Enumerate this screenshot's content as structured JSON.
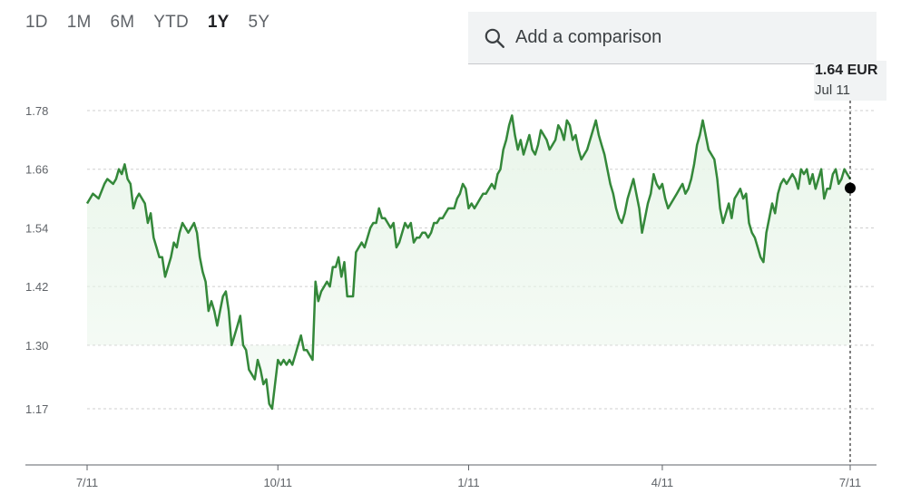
{
  "ranges": [
    "1D",
    "1M",
    "6M",
    "YTD",
    "1Y",
    "5Y"
  ],
  "active_range": "1Y",
  "search": {
    "placeholder": "Add a comparison",
    "icon": "search-icon"
  },
  "tooltip": {
    "value": "1.64 EUR",
    "date": "Jul 11"
  },
  "colors": {
    "line": "#34883a",
    "fill": "#e8f5e9",
    "grid": "#cfcfcf",
    "marker": "#000000"
  },
  "chart_data": {
    "type": "line",
    "title": "",
    "xlabel": "",
    "ylabel": "",
    "ylim": [
      1.09,
      1.81
    ],
    "y_ticks": [
      "1.78",
      "1.66",
      "1.54",
      "1.42",
      "1.30",
      "1.17"
    ],
    "x_ticks": [
      {
        "label": "7/11",
        "x": 0
      },
      {
        "label": "10/11",
        "x": 66
      },
      {
        "label": "1/11",
        "x": 132
      },
      {
        "label": "4/11",
        "x": 199
      },
      {
        "label": "7/11",
        "x": 264
      }
    ],
    "grid": true,
    "series": [
      {
        "values": [
          [
            0,
            1.59
          ],
          [
            1,
            1.6
          ],
          [
            2,
            1.61
          ],
          [
            4,
            1.6
          ],
          [
            6,
            1.63
          ],
          [
            7,
            1.64
          ],
          [
            9,
            1.63
          ],
          [
            10,
            1.64
          ],
          [
            11,
            1.66
          ],
          [
            12,
            1.65
          ],
          [
            13,
            1.67
          ],
          [
            14,
            1.64
          ],
          [
            15,
            1.63
          ],
          [
            16,
            1.58
          ],
          [
            17,
            1.6
          ],
          [
            18,
            1.61
          ],
          [
            19,
            1.6
          ],
          [
            20,
            1.59
          ],
          [
            21,
            1.55
          ],
          [
            22,
            1.57
          ],
          [
            23,
            1.52
          ],
          [
            24,
            1.5
          ],
          [
            25,
            1.48
          ],
          [
            26,
            1.48
          ],
          [
            27,
            1.44
          ],
          [
            28,
            1.46
          ],
          [
            29,
            1.48
          ],
          [
            30,
            1.51
          ],
          [
            31,
            1.5
          ],
          [
            32,
            1.53
          ],
          [
            33,
            1.55
          ],
          [
            34,
            1.54
          ],
          [
            35,
            1.53
          ],
          [
            36,
            1.54
          ],
          [
            37,
            1.55
          ],
          [
            38,
            1.53
          ],
          [
            39,
            1.48
          ],
          [
            40,
            1.45
          ],
          [
            41,
            1.43
          ],
          [
            42,
            1.37
          ],
          [
            43,
            1.39
          ],
          [
            44,
            1.37
          ],
          [
            45,
            1.34
          ],
          [
            46,
            1.37
          ],
          [
            47,
            1.4
          ],
          [
            48,
            1.41
          ],
          [
            49,
            1.37
          ],
          [
            50,
            1.3
          ],
          [
            51,
            1.32
          ],
          [
            52,
            1.34
          ],
          [
            53,
            1.36
          ],
          [
            54,
            1.3
          ],
          [
            55,
            1.29
          ],
          [
            56,
            1.25
          ],
          [
            57,
            1.24
          ],
          [
            58,
            1.23
          ],
          [
            59,
            1.27
          ],
          [
            60,
            1.25
          ],
          [
            61,
            1.22
          ],
          [
            62,
            1.23
          ],
          [
            63,
            1.18
          ],
          [
            64,
            1.17
          ],
          [
            65,
            1.22
          ],
          [
            66,
            1.27
          ],
          [
            67,
            1.26
          ],
          [
            68,
            1.27
          ],
          [
            69,
            1.26
          ],
          [
            70,
            1.27
          ],
          [
            71,
            1.26
          ],
          [
            72,
            1.28
          ],
          [
            73,
            1.3
          ],
          [
            74,
            1.32
          ],
          [
            75,
            1.29
          ],
          [
            76,
            1.29
          ],
          [
            77,
            1.28
          ],
          [
            78,
            1.27
          ],
          [
            79,
            1.43
          ],
          [
            80,
            1.39
          ],
          [
            81,
            1.41
          ],
          [
            82,
            1.42
          ],
          [
            83,
            1.43
          ],
          [
            84,
            1.42
          ],
          [
            85,
            1.46
          ],
          [
            86,
            1.46
          ],
          [
            87,
            1.48
          ],
          [
            88,
            1.44
          ],
          [
            89,
            1.47
          ],
          [
            90,
            1.4
          ],
          [
            91,
            1.4
          ],
          [
            92,
            1.4
          ],
          [
            93,
            1.49
          ],
          [
            94,
            1.5
          ],
          [
            95,
            1.51
          ],
          [
            96,
            1.5
          ],
          [
            97,
            1.52
          ],
          [
            98,
            1.54
          ],
          [
            99,
            1.55
          ],
          [
            100,
            1.55
          ],
          [
            101,
            1.58
          ],
          [
            102,
            1.56
          ],
          [
            103,
            1.56
          ],
          [
            104,
            1.55
          ],
          [
            105,
            1.54
          ],
          [
            106,
            1.55
          ],
          [
            107,
            1.5
          ],
          [
            108,
            1.51
          ],
          [
            109,
            1.53
          ],
          [
            110,
            1.55
          ],
          [
            111,
            1.54
          ],
          [
            112,
            1.55
          ],
          [
            113,
            1.51
          ],
          [
            114,
            1.52
          ],
          [
            115,
            1.52
          ],
          [
            116,
            1.53
          ],
          [
            117,
            1.53
          ],
          [
            118,
            1.52
          ],
          [
            119,
            1.53
          ],
          [
            120,
            1.55
          ],
          [
            121,
            1.55
          ],
          [
            122,
            1.56
          ],
          [
            123,
            1.56
          ],
          [
            124,
            1.57
          ],
          [
            125,
            1.58
          ],
          [
            126,
            1.58
          ],
          [
            127,
            1.58
          ],
          [
            128,
            1.6
          ],
          [
            129,
            1.61
          ],
          [
            130,
            1.63
          ],
          [
            131,
            1.62
          ],
          [
            132,
            1.58
          ],
          [
            133,
            1.59
          ],
          [
            134,
            1.58
          ],
          [
            135,
            1.59
          ],
          [
            136,
            1.6
          ],
          [
            137,
            1.61
          ],
          [
            138,
            1.61
          ],
          [
            139,
            1.62
          ],
          [
            140,
            1.63
          ],
          [
            141,
            1.62
          ],
          [
            142,
            1.65
          ],
          [
            143,
            1.66
          ],
          [
            144,
            1.7
          ],
          [
            145,
            1.72
          ],
          [
            146,
            1.75
          ],
          [
            147,
            1.77
          ],
          [
            148,
            1.73
          ],
          [
            149,
            1.7
          ],
          [
            150,
            1.72
          ],
          [
            151,
            1.69
          ],
          [
            152,
            1.71
          ],
          [
            153,
            1.73
          ],
          [
            154,
            1.7
          ],
          [
            155,
            1.69
          ],
          [
            156,
            1.71
          ],
          [
            157,
            1.74
          ],
          [
            158,
            1.73
          ],
          [
            159,
            1.72
          ],
          [
            160,
            1.7
          ],
          [
            161,
            1.71
          ],
          [
            162,
            1.72
          ],
          [
            163,
            1.75
          ],
          [
            164,
            1.74
          ],
          [
            165,
            1.72
          ],
          [
            166,
            1.76
          ],
          [
            167,
            1.75
          ],
          [
            168,
            1.72
          ],
          [
            169,
            1.73
          ],
          [
            170,
            1.7
          ],
          [
            171,
            1.68
          ],
          [
            172,
            1.69
          ],
          [
            173,
            1.7
          ],
          [
            174,
            1.72
          ],
          [
            175,
            1.74
          ],
          [
            176,
            1.76
          ],
          [
            177,
            1.73
          ],
          [
            178,
            1.71
          ],
          [
            179,
            1.69
          ],
          [
            180,
            1.66
          ],
          [
            181,
            1.63
          ],
          [
            182,
            1.61
          ],
          [
            183,
            1.58
          ],
          [
            184,
            1.56
          ],
          [
            185,
            1.55
          ],
          [
            186,
            1.57
          ],
          [
            187,
            1.6
          ],
          [
            188,
            1.62
          ],
          [
            189,
            1.64
          ],
          [
            190,
            1.61
          ],
          [
            191,
            1.58
          ],
          [
            192,
            1.53
          ],
          [
            193,
            1.56
          ],
          [
            194,
            1.59
          ],
          [
            195,
            1.61
          ],
          [
            196,
            1.65
          ],
          [
            197,
            1.63
          ],
          [
            198,
            1.62
          ],
          [
            199,
            1.63
          ],
          [
            200,
            1.6
          ],
          [
            201,
            1.58
          ],
          [
            202,
            1.59
          ],
          [
            203,
            1.6
          ],
          [
            204,
            1.61
          ],
          [
            205,
            1.62
          ],
          [
            206,
            1.63
          ],
          [
            207,
            1.61
          ],
          [
            208,
            1.62
          ],
          [
            209,
            1.64
          ],
          [
            210,
            1.67
          ],
          [
            211,
            1.71
          ],
          [
            212,
            1.73
          ],
          [
            213,
            1.76
          ],
          [
            214,
            1.73
          ],
          [
            215,
            1.7
          ],
          [
            216,
            1.69
          ],
          [
            217,
            1.68
          ],
          [
            218,
            1.64
          ],
          [
            219,
            1.58
          ],
          [
            220,
            1.55
          ],
          [
            221,
            1.57
          ],
          [
            222,
            1.59
          ],
          [
            223,
            1.56
          ],
          [
            224,
            1.6
          ],
          [
            225,
            1.61
          ],
          [
            226,
            1.62
          ],
          [
            227,
            1.6
          ],
          [
            228,
            1.61
          ],
          [
            229,
            1.55
          ],
          [
            230,
            1.53
          ],
          [
            231,
            1.52
          ],
          [
            232,
            1.5
          ],
          [
            233,
            1.48
          ],
          [
            234,
            1.47
          ],
          [
            235,
            1.53
          ],
          [
            236,
            1.56
          ],
          [
            237,
            1.59
          ],
          [
            238,
            1.57
          ],
          [
            239,
            1.61
          ],
          [
            240,
            1.63
          ],
          [
            241,
            1.64
          ],
          [
            242,
            1.63
          ],
          [
            243,
            1.64
          ],
          [
            244,
            1.65
          ],
          [
            245,
            1.64
          ],
          [
            246,
            1.62
          ],
          [
            247,
            1.66
          ],
          [
            248,
            1.65
          ],
          [
            249,
            1.66
          ],
          [
            250,
            1.63
          ],
          [
            251,
            1.65
          ],
          [
            252,
            1.62
          ],
          [
            253,
            1.64
          ],
          [
            254,
            1.66
          ],
          [
            255,
            1.6
          ],
          [
            256,
            1.62
          ],
          [
            257,
            1.62
          ],
          [
            258,
            1.65
          ],
          [
            259,
            1.66
          ],
          [
            260,
            1.63
          ],
          [
            261,
            1.64
          ],
          [
            262,
            1.66
          ],
          [
            263,
            1.65
          ],
          [
            264,
            1.64
          ]
        ]
      }
    ]
  }
}
